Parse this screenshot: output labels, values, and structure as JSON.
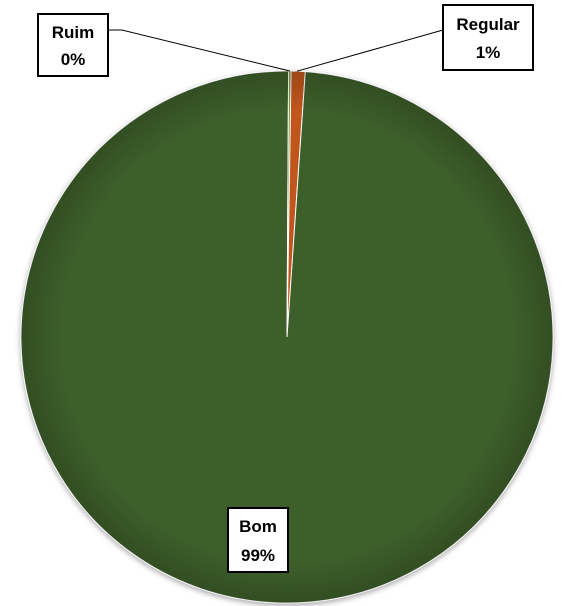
{
  "chart_data": {
    "type": "pie",
    "title": "",
    "slices": [
      {
        "label": "Bom",
        "value": 99,
        "percent_label": "99%",
        "color": "#3d5e2a"
      },
      {
        "label": "Regular",
        "value": 1,
        "percent_label": "1%",
        "color": "#c0561b"
      },
      {
        "label": "Ruim",
        "value": 0,
        "percent_label": "0%",
        "color": "#7a9a3c"
      }
    ],
    "legend": "none",
    "data_labels": "callout"
  }
}
